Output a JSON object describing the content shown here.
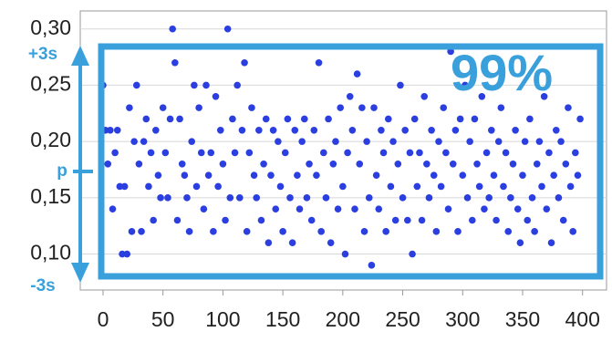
{
  "chart_data": {
    "type": "scatter",
    "x": [
      0,
      2,
      4,
      6,
      8,
      10,
      12,
      14,
      16,
      18,
      20,
      22,
      24,
      26,
      28,
      30,
      32,
      34,
      36,
      38,
      40,
      42,
      44,
      46,
      48,
      50,
      52,
      54,
      56,
      58,
      60,
      62,
      64,
      66,
      68,
      70,
      72,
      74,
      76,
      78,
      80,
      82,
      84,
      86,
      88,
      90,
      92,
      94,
      96,
      98,
      100,
      102,
      104,
      106,
      108,
      110,
      112,
      114,
      116,
      118,
      120,
      122,
      124,
      126,
      128,
      130,
      132,
      134,
      136,
      138,
      140,
      142,
      144,
      146,
      148,
      150,
      152,
      154,
      156,
      158,
      160,
      162,
      164,
      166,
      168,
      170,
      172,
      174,
      176,
      178,
      180,
      182,
      184,
      186,
      188,
      190,
      192,
      194,
      196,
      198,
      200,
      202,
      204,
      206,
      208,
      210,
      212,
      214,
      216,
      218,
      220,
      222,
      224,
      226,
      228,
      230,
      232,
      234,
      236,
      238,
      240,
      242,
      244,
      246,
      248,
      250,
      252,
      254,
      256,
      258,
      260,
      262,
      264,
      266,
      268,
      270,
      272,
      274,
      276,
      278,
      280,
      282,
      284,
      286,
      288,
      290,
      292,
      294,
      296,
      298,
      300,
      302,
      304,
      306,
      308,
      310,
      312,
      314,
      316,
      318,
      320,
      322,
      324,
      326,
      328,
      330,
      332,
      334,
      336,
      338,
      340,
      342,
      344,
      346,
      348,
      350,
      352,
      354,
      356,
      358,
      360,
      362,
      364,
      366,
      368,
      370,
      372,
      374,
      376,
      378,
      380,
      382,
      384,
      386,
      388,
      390,
      392,
      394,
      396,
      398
    ],
    "series": [
      {
        "color": "#2b3fe0",
        "values": [
          0.25,
          0.21,
          0.18,
          0.21,
          0.14,
          0.19,
          0.21,
          0.16,
          0.1,
          0.16,
          0.1,
          0.23,
          0.12,
          0.2,
          0.25,
          0.18,
          0.12,
          0.2,
          0.22,
          0.16,
          0.19,
          0.13,
          0.21,
          0.17,
          0.15,
          0.23,
          0.19,
          0.15,
          0.22,
          0.3,
          0.27,
          0.13,
          0.22,
          0.18,
          0.17,
          0.15,
          0.12,
          0.2,
          0.25,
          0.16,
          0.23,
          0.19,
          0.14,
          0.25,
          0.17,
          0.19,
          0.12,
          0.24,
          0.16,
          0.21,
          0.18,
          0.13,
          0.3,
          0.15,
          0.22,
          0.19,
          0.25,
          0.15,
          0.21,
          0.27,
          0.12,
          0.19,
          0.23,
          0.17,
          0.15,
          0.21,
          0.13,
          0.18,
          0.22,
          0.11,
          0.17,
          0.21,
          0.14,
          0.2,
          0.16,
          0.12,
          0.19,
          0.22,
          0.15,
          0.11,
          0.21,
          0.17,
          0.14,
          0.2,
          0.22,
          0.15,
          0.18,
          0.13,
          0.21,
          0.17,
          0.27,
          0.12,
          0.19,
          0.15,
          0.22,
          0.11,
          0.18,
          0.2,
          0.14,
          0.23,
          0.16,
          0.1,
          0.19,
          0.24,
          0.21,
          0.14,
          0.26,
          0.18,
          0.23,
          0.12,
          0.2,
          0.15,
          0.09,
          0.23,
          0.17,
          0.14,
          0.21,
          0.19,
          0.12,
          0.22,
          0.16,
          0.2,
          0.13,
          0.18,
          0.25,
          0.15,
          0.21,
          0.13,
          0.19,
          0.1,
          0.22,
          0.16,
          0.19,
          0.13,
          0.24,
          0.18,
          0.15,
          0.21,
          0.17,
          0.12,
          0.2,
          0.16,
          0.23,
          0.19,
          0.14,
          0.28,
          0.18,
          0.21,
          0.12,
          0.22,
          0.17,
          0.25,
          0.15,
          0.2,
          0.13,
          0.22,
          0.18,
          0.16,
          0.24,
          0.14,
          0.19,
          0.15,
          0.21,
          0.17,
          0.13,
          0.2,
          0.23,
          0.16,
          0.19,
          0.12,
          0.15,
          0.18,
          0.21,
          0.14,
          0.11,
          0.17,
          0.2,
          0.13,
          0.22,
          0.15,
          0.12,
          0.18,
          0.2,
          0.16,
          0.24,
          0.14,
          0.19,
          0.11,
          0.17,
          0.21,
          0.15,
          0.2,
          0.13,
          0.18,
          0.23,
          0.16,
          0.12,
          0.19,
          0.17,
          0.22
        ]
      }
    ],
    "xlim": [
      -19,
      420
    ],
    "ylim": [
      0.068,
      0.316
    ],
    "xticks": [
      0,
      50,
      100,
      150,
      200,
      250,
      300,
      350,
      400
    ],
    "yticks": [
      {
        "value": 0.1,
        "label": "0,10"
      },
      {
        "value": 0.15,
        "label": "0,15"
      },
      {
        "value": 0.2,
        "label": "0,20"
      },
      {
        "value": 0.25,
        "label": "0,25"
      },
      {
        "value": 0.3,
        "label": "0,30"
      }
    ],
    "grid": true,
    "annotations": [
      "+3s",
      "p",
      "-3s",
      "99%"
    ]
  }
}
